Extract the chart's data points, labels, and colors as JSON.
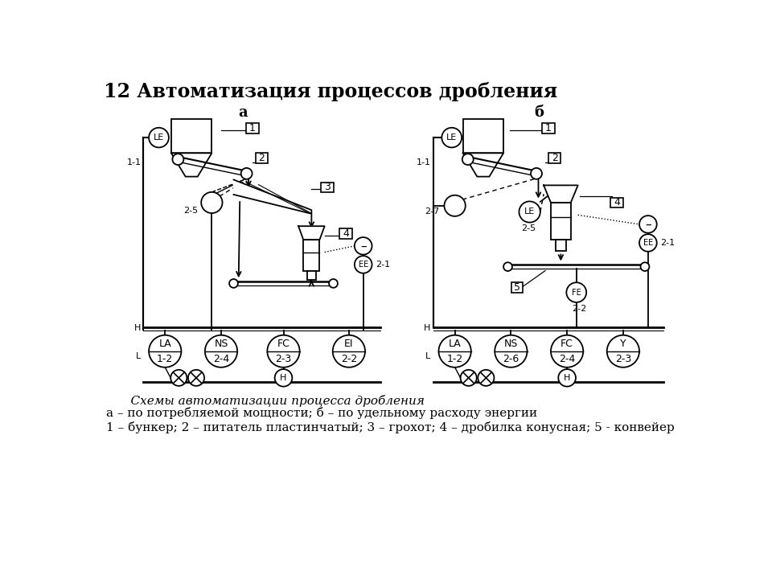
{
  "title": "12 Автоматизация процессов дробления",
  "subtitle_a": "а",
  "subtitle_b": "б",
  "caption1": "    Схемы автоматизации процесса дробления",
  "caption2": "а – по потребляемой мощности; б – по удельному расходу энергии",
  "caption3": "1 – бункер; 2 – питатель пластинчатый; 3 – грохот; 4 – дробилка конусная; 5 - конвейер",
  "bg_color": "#ffffff",
  "lc": "#000000"
}
